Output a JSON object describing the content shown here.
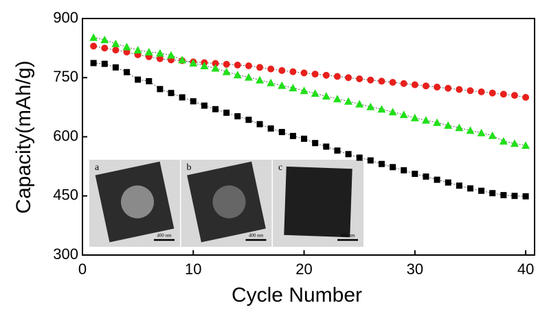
{
  "chart_data": {
    "type": "line",
    "xlabel": "Cycle Number",
    "ylabel": "Capacity(mAh/g)",
    "x": [
      1,
      2,
      3,
      4,
      5,
      6,
      7,
      8,
      9,
      10,
      11,
      12,
      13,
      14,
      15,
      16,
      17,
      18,
      19,
      20,
      21,
      22,
      23,
      24,
      25,
      26,
      27,
      28,
      29,
      30,
      31,
      32,
      33,
      34,
      35,
      36,
      37,
      38,
      39,
      40
    ],
    "series": [
      {
        "color": "#000000",
        "marker": "square",
        "values": [
          787,
          785,
          776,
          764,
          745,
          741,
          721,
          711,
          700,
          690,
          679,
          670,
          661,
          652,
          643,
          632,
          621,
          612,
          602,
          595,
          584,
          575,
          565,
          556,
          547,
          540,
          531,
          523,
          515,
          506,
          499,
          491,
          484,
          476,
          469,
          463,
          457,
          452,
          450,
          449
        ]
      },
      {
        "color": "#e8201c",
        "marker": "circle",
        "values": [
          830,
          825,
          820,
          815,
          808,
          803,
          798,
          795,
          793,
          790,
          788,
          786,
          784,
          782,
          780,
          776,
          772,
          768,
          765,
          762,
          759,
          756,
          753,
          750,
          747,
          744,
          741,
          738,
          735,
          732,
          729,
          726,
          723,
          720,
          717,
          714,
          711,
          708,
          705,
          700
        ]
      },
      {
        "color": "#22e01a",
        "marker": "triangle",
        "values": [
          852,
          846,
          836,
          828,
          820,
          815,
          812,
          807,
          795,
          787,
          780,
          774,
          765,
          757,
          751,
          744,
          737,
          730,
          724,
          717,
          710,
          703,
          696,
          690,
          683,
          676,
          670,
          663,
          656,
          648,
          642,
          636,
          629,
          623,
          616,
          610,
          603,
          589,
          583,
          578
        ]
      }
    ],
    "xlim": [
      0,
      40.8
    ],
    "xticks": [
      0,
      10,
      20,
      30,
      40
    ],
    "ylim": [
      300,
      900
    ],
    "yticks": [
      300,
      450,
      600,
      750,
      900
    ],
    "insets": [
      {
        "label": "a",
        "scale": "400 nm"
      },
      {
        "label": "b",
        "scale": "400 nm"
      },
      {
        "label": "c",
        "scale": "400 nm"
      }
    ]
  }
}
